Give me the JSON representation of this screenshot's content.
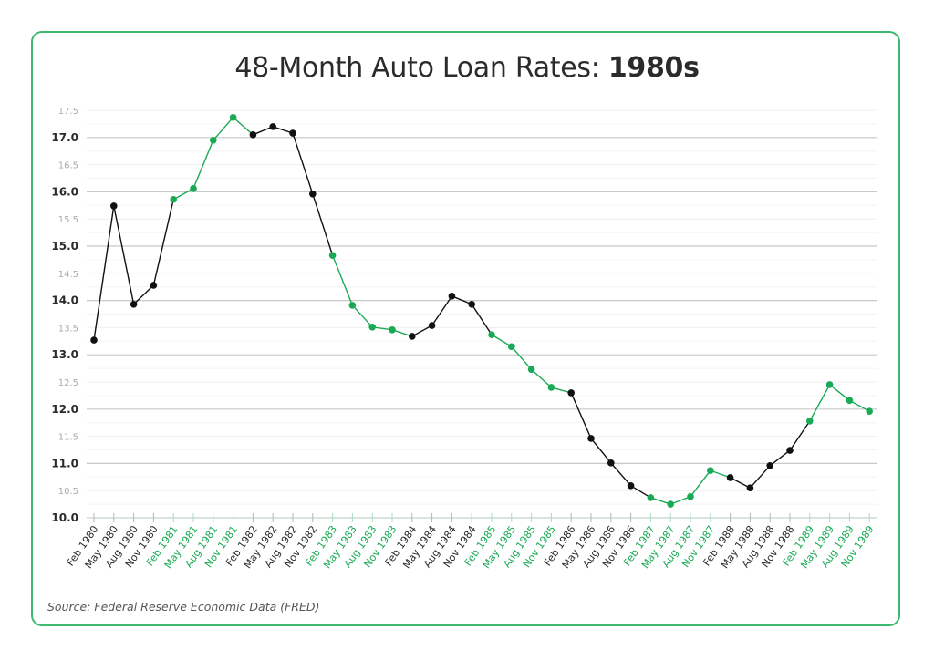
{
  "title": {
    "prefix": "48-Month Auto Loan Rates: ",
    "bold": "1980s"
  },
  "source": "Source: Federal Reserve Economic Data (FRED)",
  "colors": {
    "accent_green": "#1aaa55",
    "line_dark": "#111111",
    "border": "#3dba6f",
    "grid_major": "#c8c8c8",
    "grid_minor": "#efefef"
  },
  "chart_data": {
    "type": "line",
    "title": "48-Month Auto Loan Rates: 1980s",
    "xlabel": "",
    "ylabel": "",
    "ylim": [
      10.0,
      17.5
    ],
    "yticks": [
      "10.0",
      "10.5",
      "11.0",
      "11.5",
      "12.0",
      "12.5",
      "13.0",
      "13.5",
      "14.0",
      "14.5",
      "15.0",
      "15.5",
      "16.0",
      "16.5",
      "17.0",
      "17.5"
    ],
    "grid": true,
    "legend": null,
    "note": "Alternating years colored: even-decade years (1980, 1982, 1984, 1986, 1988) black; odd years (1981, 1983, 1985, 1987, 1989) green",
    "categories": [
      "Feb 1980",
      "May 1980",
      "Aug 1980",
      "Nov 1980",
      "Feb 1981",
      "May 1981",
      "Aug 1981",
      "Nov 1981",
      "Feb 1982",
      "May 1982",
      "Aug 1982",
      "Nov 1982",
      "Feb 1983",
      "May 1983",
      "Aug 1983",
      "Nov 1983",
      "Feb 1984",
      "May 1984",
      "Aug 1984",
      "Nov 1984",
      "Feb 1985",
      "May 1985",
      "Aug 1985",
      "Nov 1985",
      "Feb 1986",
      "May 1986",
      "Aug 1986",
      "Nov 1986",
      "Feb 1987",
      "May 1987",
      "Aug 1987",
      "Nov 1987",
      "Feb 1988",
      "May 1988",
      "Aug 1988",
      "Nov 1988",
      "Feb 1989",
      "May 1989",
      "Aug 1989",
      "Nov 1989"
    ],
    "series": [
      {
        "name": "48-Month Auto Loan Rate (%)",
        "values": [
          13.27,
          15.74,
          13.93,
          14.28,
          15.86,
          16.06,
          16.95,
          17.37,
          17.05,
          17.2,
          17.08,
          15.96,
          14.83,
          13.91,
          13.51,
          13.46,
          13.34,
          13.54,
          14.08,
          13.93,
          13.37,
          13.15,
          12.73,
          12.4,
          12.3,
          11.46,
          11.01,
          10.59,
          10.37,
          10.25,
          10.39,
          10.87,
          10.74,
          10.55,
          10.96,
          11.24,
          11.78,
          12.45,
          12.16,
          11.96
        ]
      }
    ]
  }
}
